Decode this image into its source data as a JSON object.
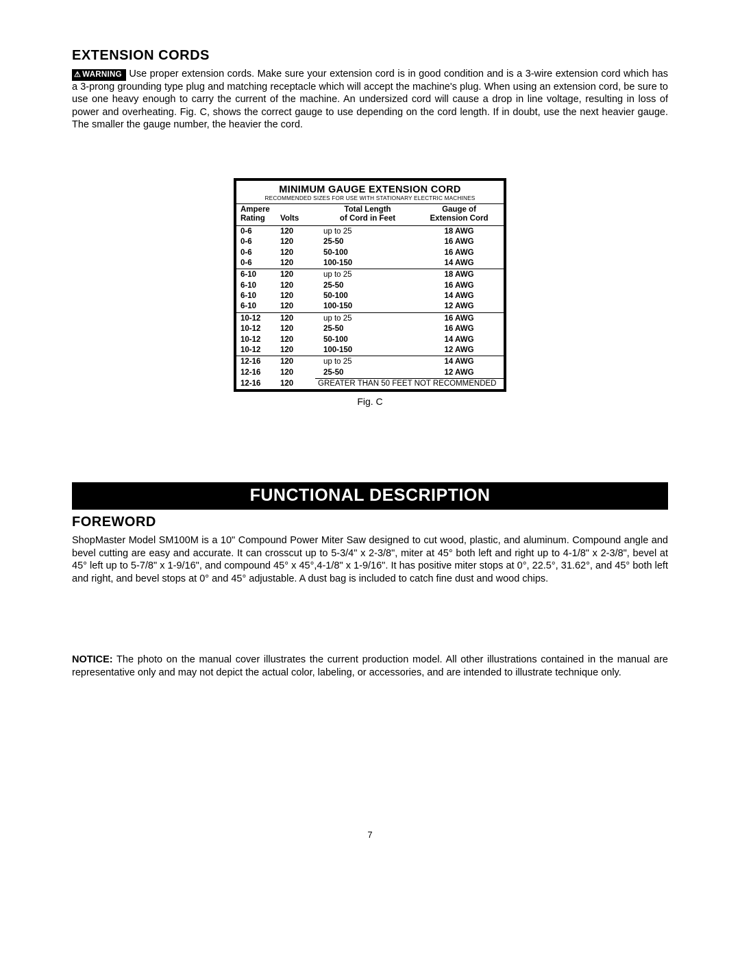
{
  "colors": {
    "text": "#000000",
    "background": "#ffffff",
    "banner_bg": "#000000",
    "banner_fg": "#ffffff",
    "border": "#000000"
  },
  "top": {
    "heading": "EXTENSION CORDS",
    "warning_label": "WARNING",
    "paragraph": " Use proper extension cords. Make sure your extension cord is in good condition and is a 3-wire extension cord which has a 3-prong grounding type plug and matching receptacle which will accept the machine's plug. When using an extension cord, be sure to use one heavy enough to carry the current of the machine. An undersized cord will cause a drop in line voltage, resulting in loss of power and overheating. Fig. C, shows the correct gauge to use depending on the cord length. If in doubt, use the next heavier gauge. The smaller the gauge number, the heavier the cord."
  },
  "table": {
    "title": "MINIMUM GAUGE EXTENSION CORD",
    "subtitle": "RECOMMENDED SIZES FOR USE WITH STATIONARY ELECTRIC MACHINES",
    "caption": "Fig. C",
    "headers": {
      "h1a": "Ampere",
      "h1b": "Rating",
      "h2": "Volts",
      "h3a": "Total Length",
      "h3b": "of Cord in Feet",
      "h4a": "Gauge of",
      "h4b": "Extension Cord"
    },
    "groups": [
      {
        "rows": [
          {
            "amp": "0-6",
            "volts": "120",
            "len": "up to 25",
            "gauge": "18 AWG"
          },
          {
            "amp": "0-6",
            "volts": "120",
            "len": "25-50",
            "gauge": "16 AWG"
          },
          {
            "amp": "0-6",
            "volts": "120",
            "len": "50-100",
            "gauge": "16 AWG"
          },
          {
            "amp": "0-6",
            "volts": "120",
            "len": "100-150",
            "gauge": "14 AWG"
          }
        ]
      },
      {
        "rows": [
          {
            "amp": "6-10",
            "volts": "120",
            "len": "up to 25",
            "gauge": "18 AWG"
          },
          {
            "amp": "6-10",
            "volts": "120",
            "len": "25-50",
            "gauge": "16 AWG"
          },
          {
            "amp": "6-10",
            "volts": "120",
            "len": "50-100",
            "gauge": "14 AWG"
          },
          {
            "amp": "6-10",
            "volts": "120",
            "len": "100-150",
            "gauge": "12 AWG"
          }
        ]
      },
      {
        "rows": [
          {
            "amp": "10-12",
            "volts": "120",
            "len": "up to 25",
            "gauge": "16 AWG"
          },
          {
            "amp": "10-12",
            "volts": "120",
            "len": "25-50",
            "gauge": "16 AWG"
          },
          {
            "amp": "10-12",
            "volts": "120",
            "len": "50-100",
            "gauge": "14 AWG"
          },
          {
            "amp": "10-12",
            "volts": "120",
            "len": "100-150",
            "gauge": "12 AWG"
          }
        ]
      },
      {
        "rows": [
          {
            "amp": "12-16",
            "volts": "120",
            "len": "up to 25",
            "gauge": "14 AWG"
          },
          {
            "amp": "12-16",
            "volts": "120",
            "len": "25-50",
            "gauge": "12 AWG"
          }
        ],
        "note_row": {
          "amp": "12-16",
          "volts": "120",
          "note": "GREATER THAN 50 FEET NOT RECOMMENDED"
        }
      }
    ]
  },
  "banner": "FUNCTIONAL DESCRIPTION",
  "foreword": {
    "heading": "FOREWORD",
    "paragraph": "ShopMaster Model SM100M is a 10\" Compound Power Miter Saw designed to cut wood, plastic, and aluminum. Compound angle and bevel cutting are easy and accurate. It can crosscut up to 5-3/4\" x 2-3/8\", miter at 45° both left and right up to 4-1/8\" x 2-3/8\", bevel at 45° left up to 5-7/8\" x 1-9/16\", and compound 45° x 45°,4-1/8\" x 1-9/16\". It has positive miter stops at 0°, 22.5°, 31.62°, and 45° both left and right, and bevel stops at 0° and 45° adjustable. A dust bag is included to catch fine dust and wood chips."
  },
  "notice": {
    "label": "NOTICE:",
    "text": " The photo on the manual cover illustrates the current production model. All other illustrations contained in the manual are representative only and may not depict the actual color, labeling, or accessories, and are intended to illustrate technique only."
  },
  "page_number": "7"
}
